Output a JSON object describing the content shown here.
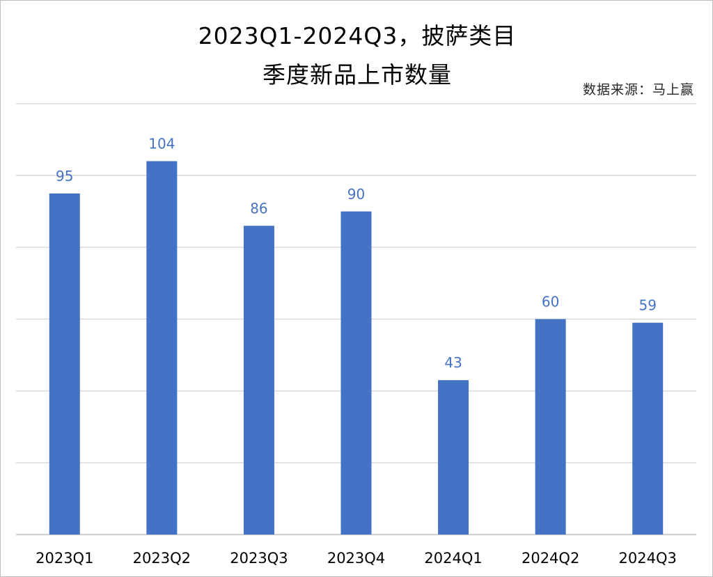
{
  "title_line1": "2023Q1-2024Q3，披萨类目",
  "title_line2": "季度新品上市数量",
  "source": "数据来源：马上赢",
  "colors": {
    "bar": "#4472c4",
    "label": "#4472c4",
    "grid": "#d9d9d9"
  },
  "chart_data": {
    "type": "bar",
    "title": "2023Q1-2024Q3，披萨类目季度新品上市数量",
    "categories": [
      "2023Q1",
      "2023Q2",
      "2023Q3",
      "2023Q4",
      "2024Q1",
      "2024Q2",
      "2024Q3"
    ],
    "values": [
      95,
      104,
      86,
      90,
      43,
      60,
      59
    ],
    "xlabel": "",
    "ylabel": "",
    "ylim": [
      0,
      120
    ],
    "grid": true,
    "gridline_step": 20,
    "data_labels": true,
    "legend": "none"
  }
}
